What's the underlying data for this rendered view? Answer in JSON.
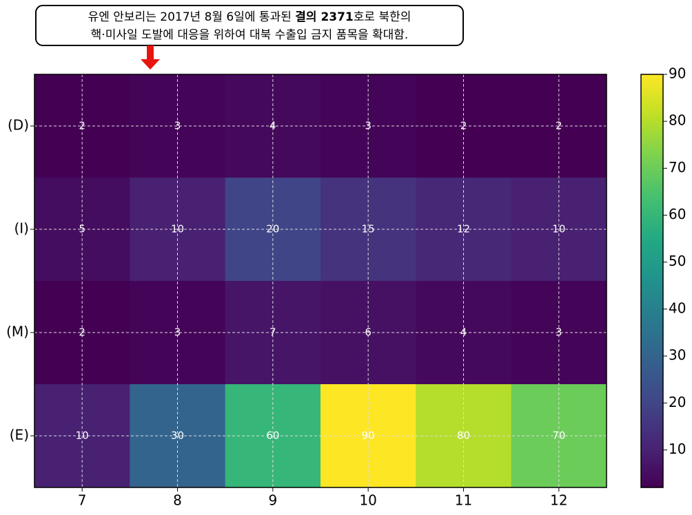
{
  "chart_data": {
    "type": "heatmap",
    "annotation": [
      "유엔 안보리는 2017년 8월 6일에 통과된 ",
      "결의 2371",
      "호로 북한의",
      "핵·미사일 도발에 대응을 위하여 대북 수출입 금지 품목을 확대함."
    ],
    "categories": [
      "7",
      "8",
      "9",
      "10",
      "11",
      "12"
    ],
    "rows": [
      "(D)",
      "(I)",
      "(M)",
      "(E)"
    ],
    "values": [
      [
        2,
        3,
        4,
        3,
        2,
        2
      ],
      [
        5,
        10,
        20,
        15,
        12,
        10
      ],
      [
        2,
        3,
        7,
        6,
        4,
        3
      ],
      [
        10,
        30,
        60,
        90,
        80,
        70
      ]
    ],
    "colormap": "viridis",
    "colorbar_lim": [
      2,
      90
    ],
    "colorbar_ticks": [
      10,
      20,
      30,
      40,
      50,
      60,
      70,
      80,
      90
    ],
    "grid": true
  }
}
